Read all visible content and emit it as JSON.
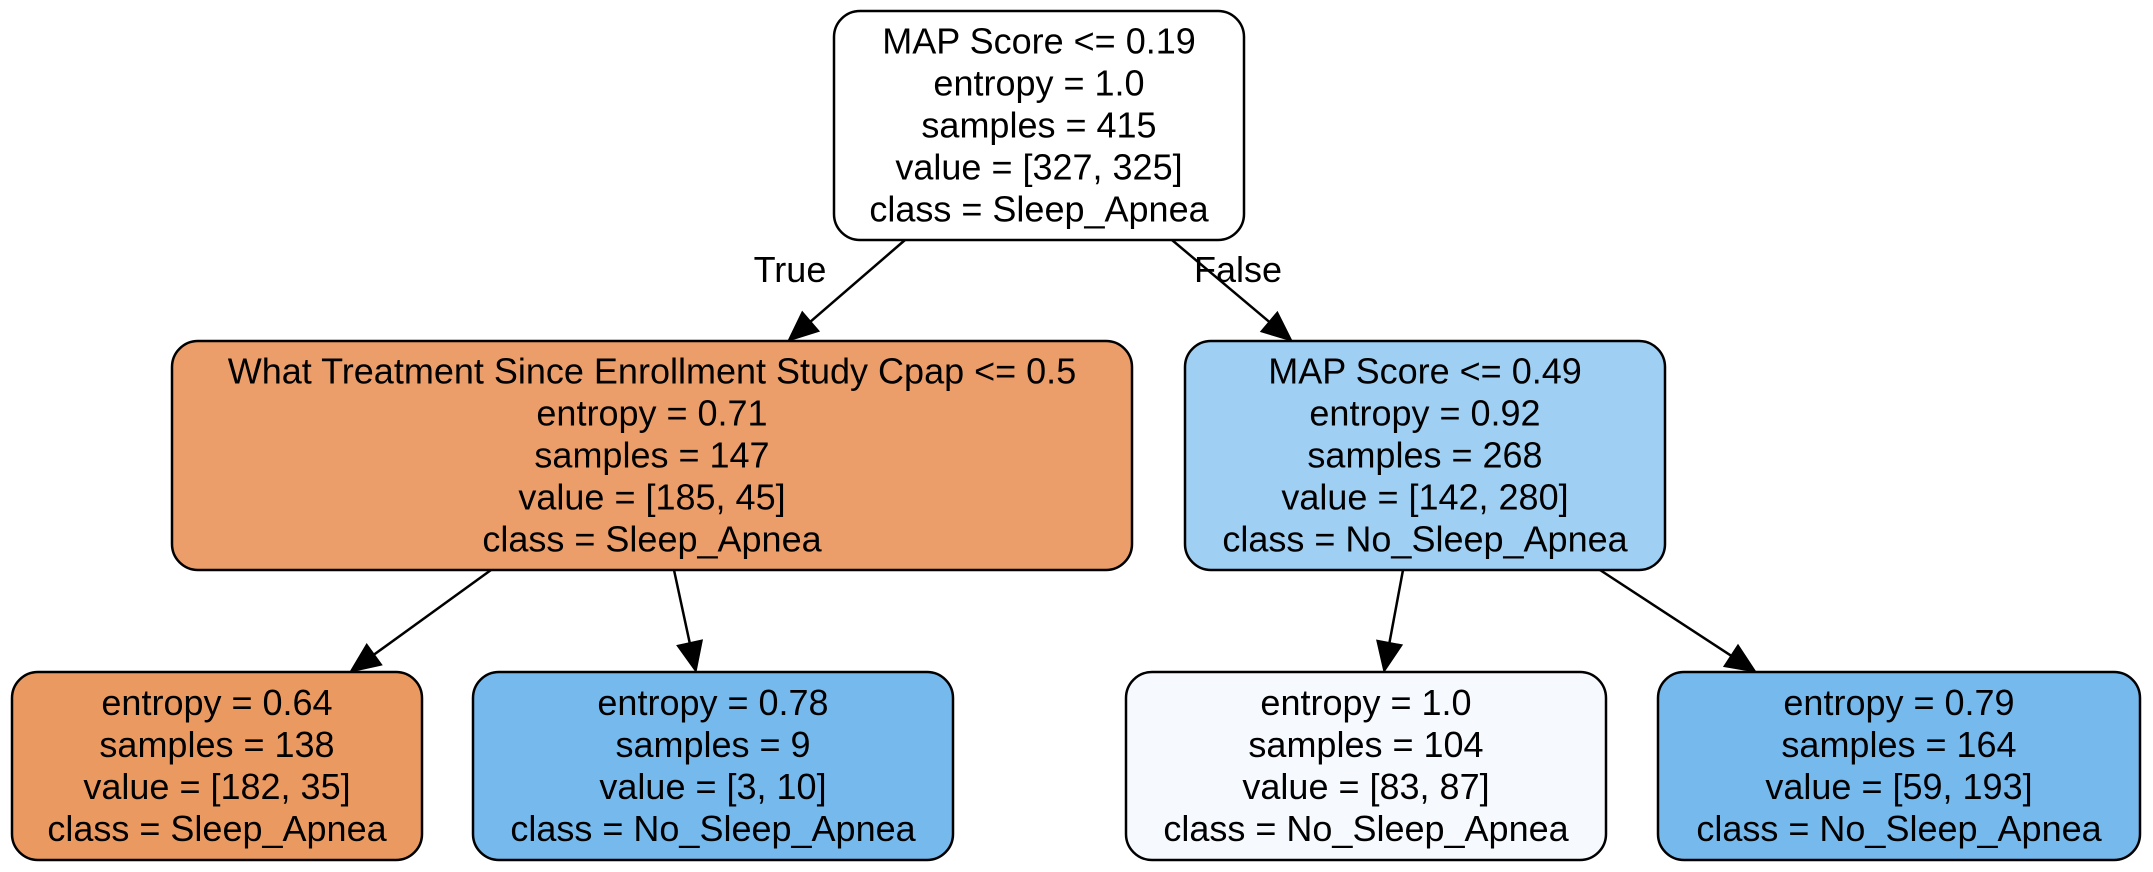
{
  "colors": {
    "white": "#ffffff",
    "orange_dark": "#ea9b67",
    "orange": "#ec9d68",
    "blue_light": "#9fcff4",
    "blue_pale": "#f6fafe",
    "blue": "#76b9ed"
  },
  "nodes": {
    "root": {
      "lines": [
        "MAP Score <= 0.19",
        "entropy = 1.0",
        "samples = 415",
        "value = [327, 325]",
        "class = Sleep_Apnea"
      ],
      "fill": "#ffffff"
    },
    "n1": {
      "lines": [
        "What Treatment Since Enrollment Study Cpap <= 0.5",
        "entropy = 0.71",
        "samples = 147",
        "value = [185, 45]",
        "class = Sleep_Apnea"
      ],
      "fill": "#eb9e69"
    },
    "n2": {
      "lines": [
        "MAP Score <= 0.49",
        "entropy = 0.92",
        "samples = 268",
        "value = [142, 280]",
        "class = No_Sleep_Apnea"
      ],
      "fill": "#9fcff3"
    },
    "n3": {
      "lines": [
        "entropy = 0.64",
        "samples = 138",
        "value = [182, 35]",
        "class = Sleep_Apnea"
      ],
      "fill": "#ea9a61"
    },
    "n4": {
      "lines": [
        "entropy = 0.78",
        "samples = 9",
        "value = [3, 10]",
        "class = No_Sleep_Apnea"
      ],
      "fill": "#76b9ed"
    },
    "n5": {
      "lines": [
        "entropy = 1.0",
        "samples = 104",
        "value = [83, 87]",
        "class = No_Sleep_Apnea"
      ],
      "fill": "#f6fafe"
    },
    "n6": {
      "lines": [
        "entropy = 0.79",
        "samples = 164",
        "value = [59, 193]",
        "class = No_Sleep_Apnea"
      ],
      "fill": "#76b9ed"
    }
  },
  "edges": [
    {
      "from": "root",
      "to": "n1",
      "label": "True"
    },
    {
      "from": "root",
      "to": "n2",
      "label": "False"
    },
    {
      "from": "n1",
      "to": "n3",
      "label": ""
    },
    {
      "from": "n1",
      "to": "n4",
      "label": ""
    },
    {
      "from": "n2",
      "to": "n5",
      "label": ""
    },
    {
      "from": "n2",
      "to": "n6",
      "label": ""
    }
  ]
}
